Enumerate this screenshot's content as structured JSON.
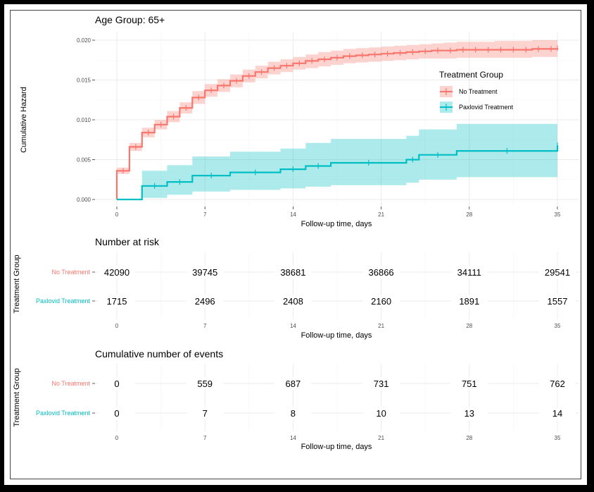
{
  "chart_data": [
    {
      "type": "step",
      "title": "Age Group: 65+",
      "xlabel": "Follow-up time, days",
      "ylabel": "Cumulative Hazard",
      "xlim": [
        0,
        35
      ],
      "ylim": [
        0,
        0.02
      ],
      "x_ticks": [
        0,
        7,
        14,
        21,
        28,
        35
      ],
      "y_ticks": [
        0.0,
        0.005,
        0.01,
        0.015,
        0.02
      ],
      "y_tick_labels": [
        "0.000",
        "0.005",
        "0.010",
        "0.015",
        "0.020"
      ],
      "grid": true,
      "legend": {
        "title": "Treatment Group",
        "position": "right-inside"
      },
      "series": [
        {
          "name": "No Treatment",
          "color": "#F8766D",
          "x": [
            0,
            1,
            2,
            3,
            4,
            5,
            6,
            7,
            8,
            9,
            10,
            11,
            12,
            13,
            14,
            15,
            16,
            17,
            18,
            19,
            20,
            21,
            22,
            23,
            24,
            25,
            26,
            27,
            28,
            29,
            30,
            31,
            32,
            33,
            34,
            35
          ],
          "y": [
            0.0036,
            0.0066,
            0.0084,
            0.0094,
            0.0104,
            0.0115,
            0.0128,
            0.0137,
            0.0143,
            0.0149,
            0.0155,
            0.016,
            0.0165,
            0.0168,
            0.0171,
            0.0174,
            0.0176,
            0.0178,
            0.018,
            0.0181,
            0.0182,
            0.0183,
            0.0184,
            0.0185,
            0.0186,
            0.0187,
            0.0187,
            0.0188,
            0.0188,
            0.0188,
            0.0188,
            0.0188,
            0.0188,
            0.0189,
            0.0189,
            0.019
          ],
          "lower": [
            0.0032,
            0.0061,
            0.0078,
            0.0088,
            0.0097,
            0.0108,
            0.012,
            0.0129,
            0.0135,
            0.0141,
            0.0147,
            0.0152,
            0.0157,
            0.016,
            0.0163,
            0.0165,
            0.0167,
            0.0169,
            0.0171,
            0.0172,
            0.0173,
            0.0174,
            0.0175,
            0.0176,
            0.0177,
            0.0177,
            0.0177,
            0.0178,
            0.0178,
            0.0178,
            0.0178,
            0.0178,
            0.0178,
            0.0179,
            0.0179,
            0.0179
          ],
          "upper": [
            0.004,
            0.0071,
            0.009,
            0.01,
            0.0111,
            0.0122,
            0.0136,
            0.0145,
            0.0151,
            0.0157,
            0.0163,
            0.0168,
            0.0173,
            0.0176,
            0.0179,
            0.0182,
            0.0185,
            0.0187,
            0.0189,
            0.019,
            0.0191,
            0.0192,
            0.0193,
            0.0194,
            0.0195,
            0.0196,
            0.0197,
            0.0198,
            0.0198,
            0.0198,
            0.0199,
            0.0199,
            0.0199,
            0.02,
            0.02,
            0.0201
          ]
        },
        {
          "name": "Paxlovid Treatment",
          "color": "#00BFC4",
          "x": [
            0,
            2,
            4,
            6,
            9,
            13,
            15,
            17,
            23,
            24,
            27,
            35
          ],
          "y": [
            0.0,
            0.0017,
            0.0022,
            0.003,
            0.0034,
            0.0038,
            0.0042,
            0.0046,
            0.005,
            0.0056,
            0.0061,
            0.0068
          ],
          "lower": [
            0.0,
            0.0002,
            0.0006,
            0.001,
            0.0012,
            0.0014,
            0.0016,
            0.0018,
            0.0021,
            0.0025,
            0.0028,
            0.0028
          ],
          "upper": [
            0.0,
            0.0036,
            0.0043,
            0.0054,
            0.006,
            0.0064,
            0.0071,
            0.0076,
            0.008,
            0.0088,
            0.0095,
            0.0095
          ]
        }
      ]
    },
    {
      "type": "table",
      "title": "Number at risk",
      "xlabel": "Follow-up time, days",
      "ylabel": "Treatment Group",
      "x_ticks": [
        0,
        7,
        14,
        21,
        28,
        35
      ],
      "rows": [
        {
          "name": "No Treatment",
          "color": "#F8766D",
          "values": [
            "42090",
            "39745",
            "38681",
            "36866",
            "34111",
            "29541"
          ]
        },
        {
          "name": "Paxlovid Treatment",
          "color": "#00BFC4",
          "values": [
            "1715",
            "2496",
            "2408",
            "2160",
            "1891",
            "1557"
          ]
        }
      ]
    },
    {
      "type": "table",
      "title": "Cumulative number of events",
      "xlabel": "Follow-up time, days",
      "ylabel": "Treatment Group",
      "x_ticks": [
        0,
        7,
        14,
        21,
        28,
        35
      ],
      "rows": [
        {
          "name": "No Treatment",
          "color": "#F8766D",
          "values": [
            "0",
            "559",
            "687",
            "731",
            "751",
            "762"
          ]
        },
        {
          "name": "Paxlovid Treatment",
          "color": "#00BFC4",
          "values": [
            "0",
            "7",
            "8",
            "10",
            "13",
            "14"
          ]
        }
      ]
    }
  ]
}
